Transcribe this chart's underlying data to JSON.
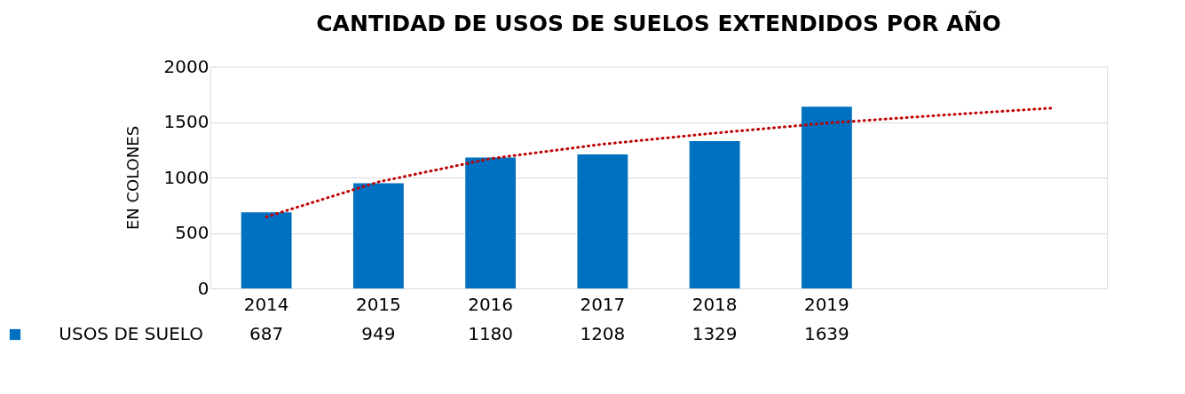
{
  "chart_data": {
    "type": "bar",
    "title": "CANTIDAD DE USOS DE SUELOS EXTENDIDOS POR AÑO",
    "ylabel": "EN COLONES",
    "categories": [
      "2014",
      "2015",
      "2016",
      "2017",
      "2018",
      "2019",
      null,
      null
    ],
    "series": [
      {
        "name": "USOS DE SUELO",
        "color": "#0070c0",
        "values": [
          687,
          949,
          1180,
          1208,
          1329,
          1639,
          null,
          null
        ],
        "value_labels": [
          "687",
          "949",
          "1180",
          "1208",
          "1329",
          "1639",
          null,
          null
        ]
      },
      {
        "type": "line",
        "color": "#c00000",
        "line_style": "dotted",
        "values": [
          645,
          960,
          1170,
          1300,
          1400,
          1490,
          1560,
          1625
        ]
      }
    ],
    "ylim": [
      0,
      2000
    ],
    "yticks": [
      0,
      500,
      1000,
      1500,
      2000
    ],
    "grid": "y",
    "legend": "bottom left"
  }
}
